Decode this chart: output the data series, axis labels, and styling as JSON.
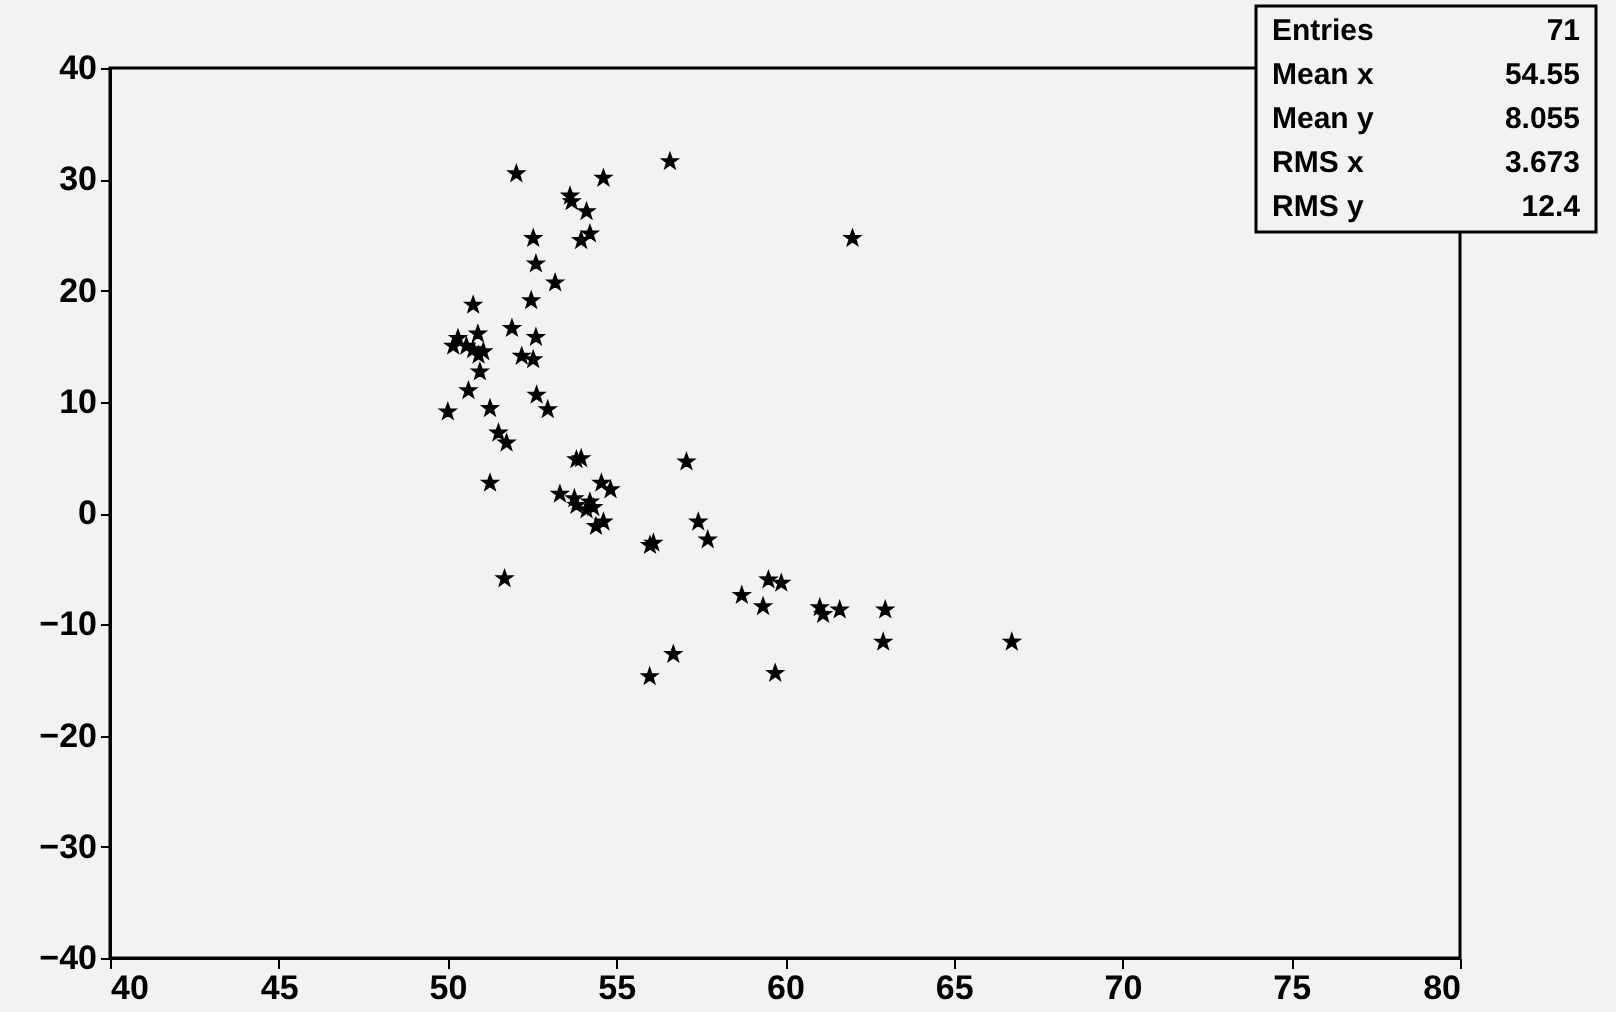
{
  "chart_data": {
    "type": "scatter",
    "marker": "star",
    "grid": false,
    "xlim": [
      40,
      80
    ],
    "xticks": [
      40,
      45,
      50,
      55,
      60,
      65,
      70,
      75,
      80
    ],
    "ylim": [
      -40,
      40
    ],
    "yticks": [
      -40,
      -30,
      -20,
      -10,
      0,
      10,
      20,
      30,
      40
    ],
    "annotations": [
      "Entries",
      "71",
      "Mean x",
      "54.55",
      "Mean y",
      "8.055",
      "RMS x",
      "3.673",
      "RMS y",
      "12.4"
    ],
    "series": [
      {
        "color": "#000000",
        "x": [
          52.04,
          54.62,
          56.59,
          53.63,
          53.68,
          54.12,
          52.54,
          53.96,
          54.22,
          52.62,
          53.19,
          52.48,
          50.76,
          51.91,
          52.62,
          50.31,
          50.9,
          50.17,
          50.56,
          50.76,
          51.06,
          50.92,
          52.2,
          52.54,
          50.96,
          50.62,
          52.64,
          52.97,
          50.01,
          51.26,
          51.51,
          51.75,
          53.96,
          53.82,
          57.08,
          51.26,
          53.33,
          53.76,
          54.22,
          53.82,
          54.32,
          54.12,
          54.56,
          54.83,
          54.62,
          54.4,
          57.43,
          57.71,
          56.1,
          56.0,
          51.69,
          59.51,
          59.89,
          58.72,
          59.35,
          56.69,
          55.99,
          59.71,
          61.03,
          61.13,
          61.62,
          62.97,
          62.91,
          66.72,
          62.0
        ],
        "values": [
          30.5,
          30.1,
          31.6,
          28.5,
          28.0,
          27.1,
          24.7,
          24.5,
          25.1,
          22.4,
          20.7,
          19.1,
          18.7,
          16.6,
          15.8,
          15.7,
          16.1,
          15.0,
          15.0,
          14.7,
          14.5,
          14.2,
          14.1,
          13.8,
          12.7,
          11.0,
          10.6,
          9.3,
          9.1,
          9.4,
          7.2,
          6.3,
          4.9,
          4.8,
          4.6,
          2.7,
          1.7,
          1.3,
          1.0,
          0.7,
          0.5,
          0.3,
          2.7,
          2.1,
          -0.8,
          -1.2,
          -0.8,
          -2.4,
          -2.7,
          -2.9,
          -5.9,
          -6.0,
          -6.3,
          -7.4,
          -8.4,
          -12.7,
          -14.7,
          -14.4,
          -8.5,
          -9.1,
          -8.7,
          -8.7,
          -11.6,
          -11.6,
          24.7
        ]
      }
    ]
  }
}
